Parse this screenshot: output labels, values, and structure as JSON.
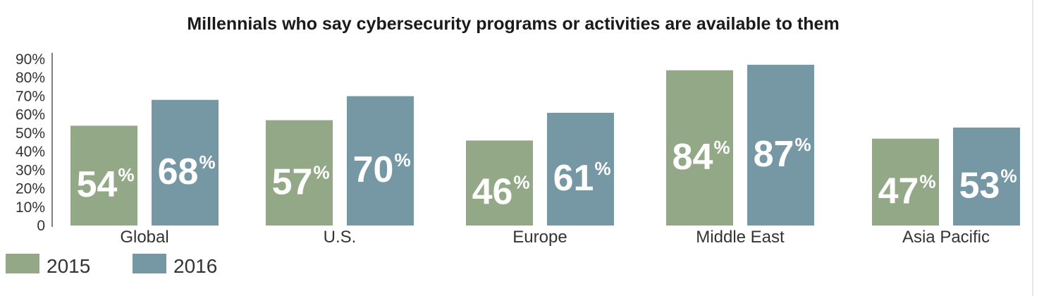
{
  "chart_data": {
    "type": "bar",
    "title": "Millennials who say cybersecurity programs or activities are available to them",
    "categories": [
      "Global",
      "U.S.",
      "Europe",
      "Middle East",
      "Asia Pacific"
    ],
    "series": [
      {
        "name": "2015",
        "values": [
          54,
          57,
          46,
          84,
          47
        ],
        "color": "#93a886"
      },
      {
        "name": "2016",
        "values": [
          68,
          70,
          61,
          87,
          53
        ],
        "color": "#7698a5"
      }
    ],
    "value_suffix": "%",
    "yticks": [
      "0",
      "10%",
      "20%",
      "30%",
      "40%",
      "50%",
      "60%",
      "70%",
      "80%",
      "90%"
    ],
    "ylim": [
      0,
      90
    ],
    "xlabel": "",
    "ylabel": "",
    "grid": false,
    "legend_position": "bottom-left"
  }
}
